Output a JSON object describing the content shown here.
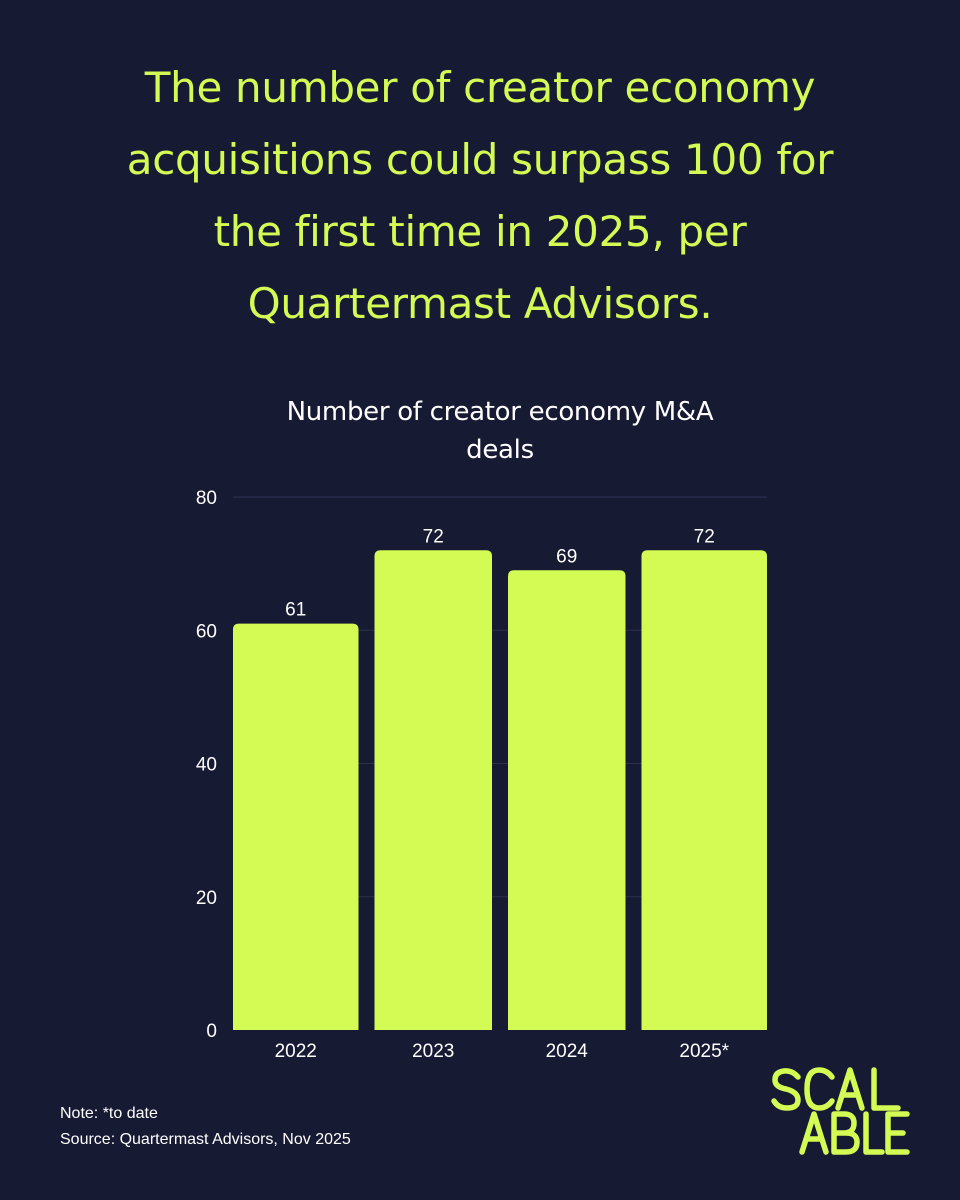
{
  "headline": "The number of creator economy acquisitions could surpass 100 for the first time in 2025, per Quartermast Advisors.",
  "chart_data": {
    "type": "bar",
    "title_line1": "Number of creator economy M&A",
    "title_line2": "deals",
    "categories": [
      "2022",
      "2023",
      "2024",
      "2025*"
    ],
    "values": [
      61,
      72,
      69,
      72
    ],
    "ylim": [
      0,
      80
    ],
    "yticks": [
      0,
      20,
      40,
      60,
      80
    ],
    "grid": true,
    "bar_color": "#d4fb54"
  },
  "footer": {
    "note": "Note: *to date",
    "source": "Source: Quartermast Advisors, Nov 2025"
  },
  "logo": {
    "text": "SCALABLE",
    "color": "#d4fb54"
  },
  "colors": {
    "background": "#171a33",
    "accent": "#d4fb54",
    "gridline": "#2e3150"
  }
}
